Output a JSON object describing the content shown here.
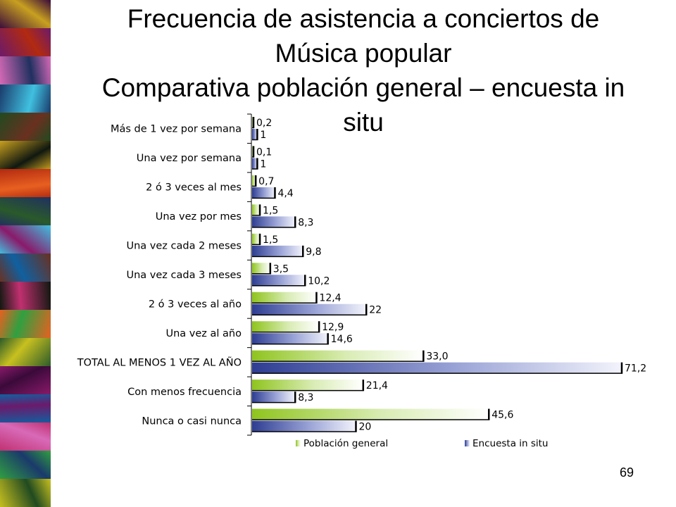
{
  "slide": {
    "title_lines": [
      "Frecuencia de asistencia a conciertos de",
      "Música popular",
      "Comparativa población general – encuesta in",
      "situ"
    ],
    "page_number": "69",
    "decor_colors": [
      "#3a0a3a",
      "#6b1a6b",
      "#d86ab8",
      "#1a3a6b",
      "#204a20",
      "#c8a020",
      "#b22a10",
      "#203060",
      "#40c0e0",
      "#6a3020",
      "#101810",
      "#e86020",
      "#2a5a2a",
      "#8a1a6a",
      "#1060a0",
      "#c03070",
      "#30a040",
      "#c8c020"
    ]
  },
  "chart_data": {
    "type": "bar",
    "orientation": "horizontal",
    "categories": [
      "Más de 1 vez por semana",
      "Una vez por semana",
      "2 ó 3 veces al mes",
      "Una vez por mes",
      "Una vez cada 2 meses",
      "Una vez cada 3 meses",
      "2 ó 3 veces al año",
      "Una vez al año",
      "TOTAL AL MENOS 1 VEZ AL AÑO",
      "Con menos frecuencia",
      "Nunca o casi  nunca"
    ],
    "series": [
      {
        "name": "Población general",
        "color": "#9acd32",
        "values": [
          0.2,
          0.1,
          0.7,
          1.5,
          1.5,
          3.5,
          12.4,
          12.9,
          33.0,
          21.4,
          45.6
        ],
        "labels": [
          "0,2",
          "0,1",
          "0,7",
          "1,5",
          "1,5",
          "3,5",
          "12,4",
          "12,9",
          "33,0",
          "21,4",
          "45,6"
        ]
      },
      {
        "name": "Encuesta in situ",
        "color": "#3a4a9a",
        "values": [
          1,
          1,
          4.4,
          8.3,
          9.8,
          10.2,
          22,
          14.6,
          71.2,
          8.3,
          20
        ],
        "labels": [
          "1",
          "1",
          "4,4",
          "8,3",
          "9,8",
          "10,2",
          "22",
          "14,6",
          "71,2",
          "8,3",
          "20"
        ]
      }
    ],
    "xlim": [
      0,
      71.2
    ],
    "legend_position": "bottom",
    "grid": false
  }
}
